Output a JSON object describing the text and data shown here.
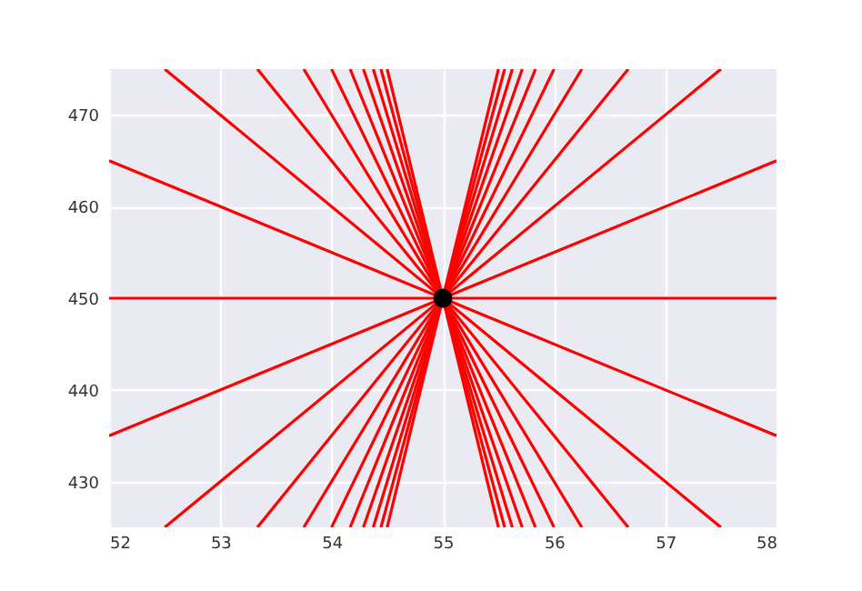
{
  "chart_data": {
    "type": "line",
    "xlim": [
      52,
      58
    ],
    "ylim": [
      425,
      475
    ],
    "xticks": [
      52,
      53,
      54,
      55,
      56,
      57,
      58
    ],
    "yticks": [
      430,
      440,
      450,
      460,
      470
    ],
    "grid": true,
    "line_style": "solid",
    "series": [
      {
        "type": "line",
        "color": "#ff0000",
        "x": [
          54.5,
          55.5
        ],
        "values": [
          475,
          425
        ]
      },
      {
        "type": "line",
        "color": "#ff0000",
        "x": [
          54.444,
          55.556
        ],
        "values": [
          475,
          425
        ]
      },
      {
        "type": "line",
        "color": "#ff0000",
        "x": [
          54.375,
          55.625
        ],
        "values": [
          475,
          425
        ]
      },
      {
        "type": "line",
        "color": "#ff0000",
        "x": [
          54.286,
          55.714
        ],
        "values": [
          475,
          425
        ]
      },
      {
        "type": "line",
        "color": "#ff0000",
        "x": [
          54.167,
          55.833
        ],
        "values": [
          475,
          425
        ]
      },
      {
        "type": "line",
        "color": "#ff0000",
        "x": [
          54,
          56
        ],
        "values": [
          475,
          425
        ]
      },
      {
        "type": "line",
        "color": "#ff0000",
        "x": [
          53.75,
          56.25
        ],
        "values": [
          475,
          425
        ]
      },
      {
        "type": "line",
        "color": "#ff0000",
        "x": [
          53.333,
          56.667
        ],
        "values": [
          475,
          425
        ]
      },
      {
        "type": "line",
        "color": "#ff0000",
        "x": [
          52.5,
          57.5
        ],
        "values": [
          475,
          425
        ]
      },
      {
        "type": "line",
        "color": "#ff0000",
        "x": [
          52,
          58
        ],
        "values": [
          465,
          435
        ]
      },
      {
        "type": "line",
        "color": "#ff0000",
        "x": [
          52,
          58
        ],
        "values": [
          450,
          450
        ]
      },
      {
        "type": "line",
        "color": "#ff0000",
        "x": [
          52,
          58
        ],
        "values": [
          435,
          465
        ]
      },
      {
        "type": "line",
        "color": "#ff0000",
        "x": [
          52.5,
          57.5
        ],
        "values": [
          425,
          475
        ]
      },
      {
        "type": "line",
        "color": "#ff0000",
        "x": [
          53.333,
          56.667
        ],
        "values": [
          425,
          475
        ]
      },
      {
        "type": "line",
        "color": "#ff0000",
        "x": [
          53.75,
          56.25
        ],
        "values": [
          425,
          475
        ]
      },
      {
        "type": "line",
        "color": "#ff0000",
        "x": [
          54,
          56
        ],
        "values": [
          425,
          475
        ]
      },
      {
        "type": "line",
        "color": "#ff0000",
        "x": [
          54.167,
          55.833
        ],
        "values": [
          425,
          475
        ]
      },
      {
        "type": "line",
        "color": "#ff0000",
        "x": [
          54.286,
          55.714
        ],
        "values": [
          425,
          475
        ]
      },
      {
        "type": "line",
        "color": "#ff0000",
        "x": [
          54.375,
          55.625
        ],
        "values": [
          425,
          475
        ]
      },
      {
        "type": "line",
        "color": "#ff0000",
        "x": [
          54.444,
          55.556
        ],
        "values": [
          425,
          475
        ]
      },
      {
        "type": "line",
        "color": "#ff0000",
        "x": [
          54.5,
          55.5
        ],
        "values": [
          425,
          475
        ]
      },
      {
        "type": "scatter",
        "color": "#000000",
        "marker": "circle",
        "x": [
          55
        ],
        "values": [
          450
        ]
      }
    ]
  }
}
